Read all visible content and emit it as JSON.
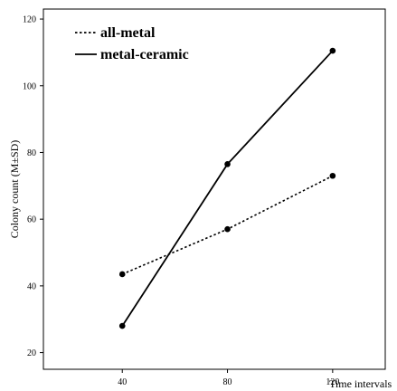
{
  "chart_data": {
    "type": "line",
    "xlabel": "Time intervals",
    "ylabel": "Colony count (M±SD)",
    "x": [
      40,
      80,
      120
    ],
    "xlim": [
      10,
      140
    ],
    "ylim": [
      15,
      123
    ],
    "xticks": [
      40,
      80,
      120
    ],
    "yticks": [
      20,
      40,
      60,
      80,
      100,
      120
    ],
    "grid": false,
    "legend_position": "top-left",
    "series": [
      {
        "name": "all-metal",
        "values": [
          43.5,
          57,
          73
        ],
        "line_style": "dotted",
        "color": "#000000"
      },
      {
        "name": "metal-ceramic",
        "values": [
          28,
          76.5,
          110.5
        ],
        "line_style": "solid",
        "color": "#000000"
      }
    ]
  }
}
